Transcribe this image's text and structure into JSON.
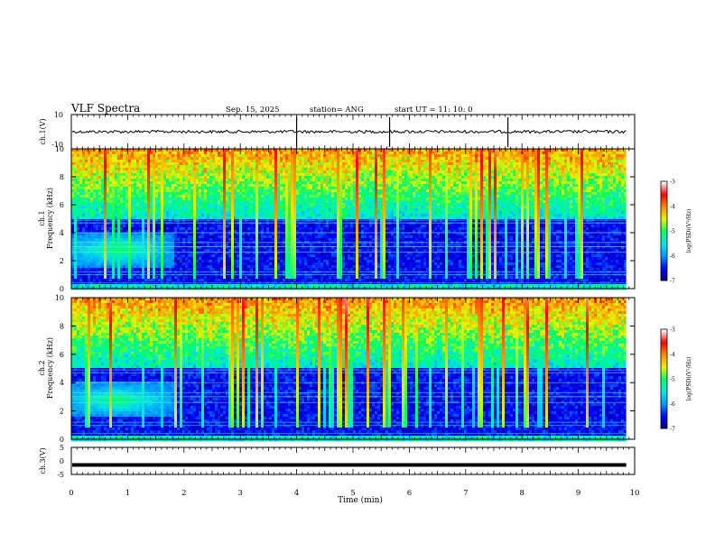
{
  "header": {
    "title": "VLF Spectra",
    "date": "Sep. 15, 2025",
    "station": "station= ANG",
    "start_ut": "start  UT =   11: 10: 0"
  },
  "chart_data": [
    {
      "type": "line",
      "name": "channel-1-waveform",
      "ylabel": "ch.1(V)",
      "ylim": [
        -10,
        10
      ],
      "ytick_labels": [
        "10",
        "-10"
      ],
      "baseline_level": 0,
      "spikes_at_minutes": [
        4.0,
        5.65,
        7.75
      ]
    },
    {
      "type": "heatmap",
      "name": "channel-1-spectrogram",
      "ylabel_line1": "ch.1",
      "ylabel_line2": "Frequency (kHz)",
      "ylim": [
        0,
        10
      ],
      "ytick_labels": [
        "0",
        "2",
        "4",
        "6",
        "8",
        "10"
      ],
      "colorbar_label": "log(PSD)(V²/Hz)",
      "colorbar_range": [
        -7,
        -3
      ],
      "colorbar_tick_labels": [
        "-3",
        "-4",
        "-5",
        "-6",
        "-7"
      ],
      "hiss_band_khz": [
        1.5,
        4
      ],
      "hiss_time_min": [
        0,
        1.8
      ],
      "line_frequencies_khz": [
        0.4,
        1.0,
        1.2,
        2.6,
        3.0,
        3.3,
        4.0,
        4.7,
        4.9
      ]
    },
    {
      "type": "heatmap",
      "name": "channel-2-spectrogram",
      "ylabel_line1": "ch.2",
      "ylabel_line2": "Frequency (kHz)",
      "ylim": [
        0,
        10
      ],
      "ytick_labels": [
        "0",
        "2",
        "4",
        "6",
        "8",
        "10"
      ],
      "colorbar_label": "log(PSD)(V²/Hz)",
      "colorbar_range": [
        -7,
        -3
      ],
      "colorbar_tick_labels": [
        "-3",
        "-4",
        "-5",
        "-6",
        "-7"
      ],
      "hiss_band_khz": [
        1.5,
        4
      ],
      "hiss_time_min": [
        0,
        1.8
      ],
      "line_frequencies_khz": [
        0.4,
        1.0,
        1.2,
        2.6,
        3.0,
        3.3,
        4.0,
        4.7,
        4.9
      ]
    },
    {
      "type": "line",
      "name": "channel-3-waveform",
      "ylabel": "ch.3(V)",
      "ylim": [
        -5,
        5
      ],
      "ytick_labels": [
        "5",
        "0",
        "-5"
      ],
      "level": -1.5
    }
  ],
  "x_axis": {
    "label": "Time  (min)",
    "range": [
      0,
      10
    ],
    "data_end_min": 9.85,
    "tick_labels": [
      "0",
      "1",
      "2",
      "3",
      "4",
      "5",
      "6",
      "7",
      "8",
      "9",
      "10"
    ]
  },
  "colors": {
    "axis": "#000000",
    "colormap": [
      "#00007a",
      "#0000ff",
      "#0096ff",
      "#00e6e6",
      "#00ff64",
      "#e6f500",
      "#ff8c00",
      "#ff0000",
      "#ffffff"
    ]
  }
}
